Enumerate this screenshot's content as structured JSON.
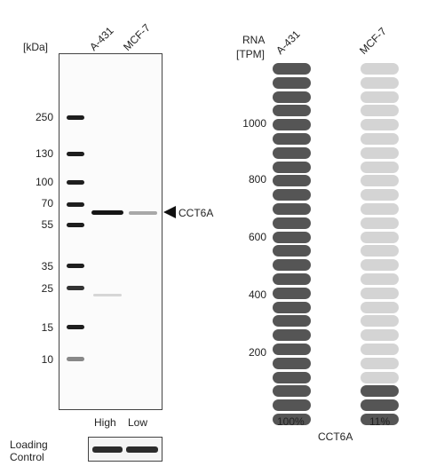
{
  "western_blot": {
    "unit_label": "[kDa]",
    "lanes": [
      "A-431",
      "MCF-7"
    ],
    "markers": [
      "250",
      "130",
      "100",
      "70",
      "55",
      "35",
      "25",
      "15",
      "10"
    ],
    "target_label": "CCT6A",
    "expression_labels": [
      "High",
      "Low"
    ],
    "loading_control_label_line1": "Loading",
    "loading_control_label_line2": "Control"
  },
  "rna": {
    "axis_label_line1": "RNA",
    "axis_label_line2": "[TPM]",
    "columns": [
      "A-431",
      "MCF-7"
    ],
    "ticks": [
      "1000",
      "800",
      "600",
      "400",
      "200"
    ],
    "percentages": [
      "100%",
      "11%"
    ],
    "gene": "CCT6A",
    "pill_total": 26,
    "filled_counts": [
      26,
      3
    ],
    "colors": {
      "a431_fill": "#555555",
      "mcf7_fill": "#555555",
      "empty": "#d4d4d4"
    }
  }
}
